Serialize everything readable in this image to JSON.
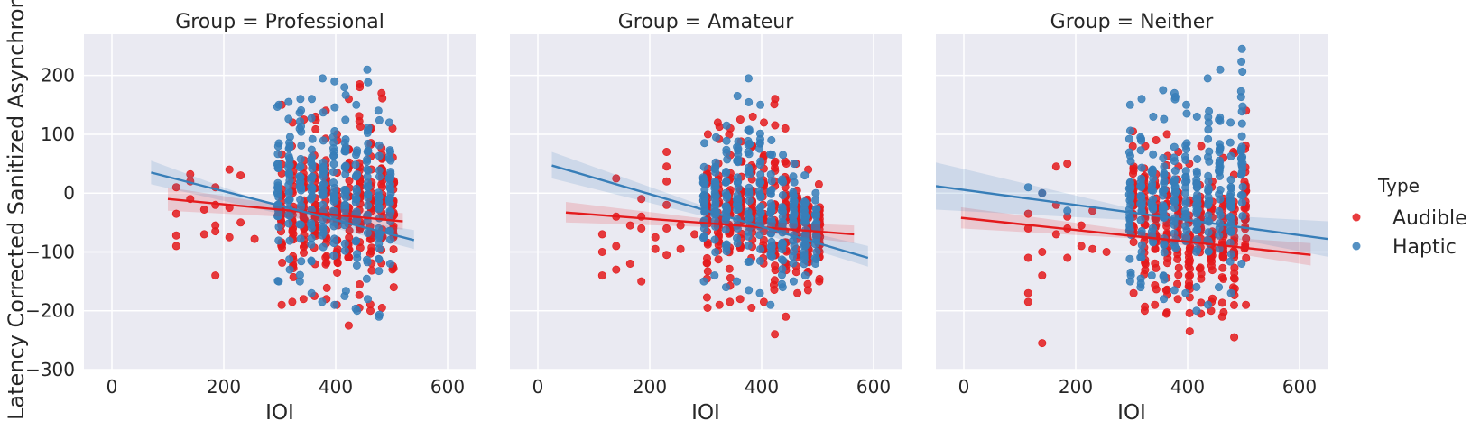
{
  "figure": {
    "ylabel": "Latency Corrected Sanitized Asynchrony",
    "xlabel": "IOI"
  },
  "legend": {
    "title": "Type",
    "items": [
      {
        "label": "Audible",
        "color": "#e41a1c"
      },
      {
        "label": "Haptic",
        "color": "#377eb8"
      }
    ]
  },
  "chart_data": [
    {
      "type": "scatter",
      "title": "Group = Professional",
      "xlabel": "IOI",
      "ylabel": "Latency Corrected Sanitized Asynchrony",
      "xlim": [
        -50,
        650
      ],
      "ylim": [
        -300,
        270
      ],
      "xticks": [
        0,
        200,
        400,
        600
      ],
      "yticks": [
        -300,
        -200,
        -100,
        0,
        100,
        200
      ],
      "grid": true,
      "ioi_values": [
        300,
        320,
        340,
        360,
        380,
        400,
        420,
        440,
        460,
        480,
        500
      ],
      "series": [
        {
          "name": "Audible",
          "color": "#e41a1c",
          "fit": {
            "x": [
              100,
              520
            ],
            "y": [
              -10,
              -48
            ]
          },
          "band": {
            "x": [
              100,
              300,
              520
            ],
            "lower": [
              -30,
              -40,
              -62
            ],
            "upper": [
              10,
              -20,
              -34
            ]
          },
          "sparse_points": [
            {
              "x": 115,
              "y": 10
            },
            {
              "x": 115,
              "y": -35
            },
            {
              "x": 115,
              "y": -72
            },
            {
              "x": 115,
              "y": -90
            },
            {
              "x": 140,
              "y": 32
            },
            {
              "x": 140,
              "y": 20
            },
            {
              "x": 140,
              "y": -10
            },
            {
              "x": 165,
              "y": -28
            },
            {
              "x": 165,
              "y": -70
            },
            {
              "x": 185,
              "y": 10
            },
            {
              "x": 185,
              "y": -20
            },
            {
              "x": 185,
              "y": -55
            },
            {
              "x": 185,
              "y": -65
            },
            {
              "x": 185,
              "y": -140
            },
            {
              "x": 210,
              "y": 40
            },
            {
              "x": 210,
              "y": -25
            },
            {
              "x": 210,
              "y": -75
            },
            {
              "x": 230,
              "y": 30
            },
            {
              "x": 230,
              "y": -50
            },
            {
              "x": 255,
              "y": -78
            }
          ],
          "ranges": {
            "x": [
              300,
              320,
              340,
              360,
              380,
              400,
              420,
              440,
              460,
              480,
              500
            ],
            "min": [
              -190,
              -185,
              -180,
              -175,
              -180,
              -190,
              -225,
              -195,
              -200,
              -195,
              -160
            ],
            "max": [
              150,
              120,
              125,
              130,
              140,
              100,
              160,
              185,
              110,
              170,
              110
            ]
          }
        },
        {
          "name": "Haptic",
          "color": "#377eb8",
          "fit": {
            "x": [
              70,
              540
            ],
            "y": [
              35,
              -80
            ]
          },
          "band": {
            "x": [
              70,
              300,
              540
            ],
            "lower": [
              15,
              -35,
              -95
            ],
            "upper": [
              55,
              -25,
              -63
            ]
          },
          "sparse_points": [],
          "ranges": {
            "x": [
              300,
              320,
              340,
              360,
              380,
              400,
              420,
              440,
              460,
              480,
              500
            ],
            "min": [
              -150,
              -130,
              -150,
              -170,
              -185,
              -190,
              -175,
              -200,
              -180,
              -210,
              -120
            ],
            "max": [
              150,
              155,
              160,
              160,
              195,
              190,
              180,
              150,
              210,
              140,
              120
            ]
          }
        }
      ]
    },
    {
      "type": "scatter",
      "title": "Group = Amateur",
      "xlabel": "IOI",
      "xlim": [
        -50,
        650
      ],
      "ylim": [
        -300,
        270
      ],
      "xticks": [
        0,
        200,
        400,
        600
      ],
      "yticks": [
        -300,
        -200,
        -100,
        0,
        100,
        200
      ],
      "grid": true,
      "ioi_values": [
        300,
        320,
        340,
        360,
        380,
        400,
        420,
        440,
        460,
        480,
        500
      ],
      "series": [
        {
          "name": "Audible",
          "color": "#e41a1c",
          "fit": {
            "x": [
              50,
              565
            ],
            "y": [
              -33,
              -70
            ]
          },
          "band": {
            "x": [
              50,
              320,
              565
            ],
            "lower": [
              -50,
              -58,
              -85
            ],
            "upper": [
              -15,
              -46,
              -55
            ]
          },
          "sparse_points": [
            {
              "x": 115,
              "y": -70
            },
            {
              "x": 115,
              "y": -100
            },
            {
              "x": 115,
              "y": -140
            },
            {
              "x": 140,
              "y": 25
            },
            {
              "x": 140,
              "y": -40
            },
            {
              "x": 140,
              "y": -90
            },
            {
              "x": 140,
              "y": -130
            },
            {
              "x": 165,
              "y": -55
            },
            {
              "x": 165,
              "y": -120
            },
            {
              "x": 185,
              "y": -10
            },
            {
              "x": 185,
              "y": -40
            },
            {
              "x": 185,
              "y": -60
            },
            {
              "x": 185,
              "y": -150
            },
            {
              "x": 210,
              "y": -75
            },
            {
              "x": 210,
              "y": -95
            },
            {
              "x": 230,
              "y": 70
            },
            {
              "x": 230,
              "y": 45
            },
            {
              "x": 230,
              "y": 20
            },
            {
              "x": 230,
              "y": -20
            },
            {
              "x": 230,
              "y": -60
            },
            {
              "x": 230,
              "y": -105
            },
            {
              "x": 255,
              "y": -55
            },
            {
              "x": 255,
              "y": -95
            },
            {
              "x": 280,
              "y": -70
            }
          ],
          "ranges": {
            "x": [
              300,
              320,
              340,
              360,
              380,
              400,
              420,
              440,
              460,
              480,
              500
            ],
            "min": [
              -195,
              -190,
              -185,
              -180,
              -195,
              -185,
              -240,
              -210,
              -170,
              -165,
              -150
            ],
            "max": [
              100,
              120,
              110,
              125,
              130,
              120,
              160,
              110,
              50,
              40,
              15
            ]
          }
        },
        {
          "name": "Haptic",
          "color": "#377eb8",
          "fit": {
            "x": [
              25,
              590
            ],
            "y": [
              47,
              -110
            ]
          },
          "band": {
            "x": [
              25,
              320,
              590
            ],
            "lower": [
              25,
              -45,
              -125
            ],
            "upper": [
              70,
              -30,
              -90
            ]
          },
          "sparse_points": [],
          "ranges": {
            "x": [
              300,
              320,
              340,
              360,
              380,
              400,
              420,
              440,
              460,
              480,
              500
            ],
            "min": [
              -150,
              -140,
              -160,
              -150,
              -165,
              -170,
              -190,
              -160,
              -150,
              -140,
              -120
            ],
            "max": [
              85,
              95,
              115,
              165,
              195,
              150,
              90,
              65,
              50,
              30,
              0
            ]
          }
        }
      ]
    },
    {
      "type": "scatter",
      "title": "Group = Neither",
      "xlabel": "IOI",
      "xlim": [
        -50,
        650
      ],
      "ylim": [
        -300,
        270
      ],
      "xticks": [
        0,
        200,
        400,
        600
      ],
      "yticks": [
        -300,
        -200,
        -100,
        0,
        100,
        200
      ],
      "grid": true,
      "ioi_values": [
        300,
        320,
        340,
        360,
        380,
        400,
        420,
        440,
        460,
        480,
        500
      ],
      "series": [
        {
          "name": "Audible",
          "color": "#e41a1c",
          "fit": {
            "x": [
              -5,
              620
            ],
            "y": [
              -42,
              -105
            ]
          },
          "band": {
            "x": [
              -5,
              320,
              620
            ],
            "lower": [
              -60,
              -78,
              -123
            ],
            "upper": [
              -24,
              -66,
              -85
            ]
          },
          "sparse_points": [
            {
              "x": 115,
              "y": -35
            },
            {
              "x": 115,
              "y": -60
            },
            {
              "x": 115,
              "y": -110
            },
            {
              "x": 115,
              "y": -170
            },
            {
              "x": 115,
              "y": -185
            },
            {
              "x": 140,
              "y": 0
            },
            {
              "x": 140,
              "y": -100
            },
            {
              "x": 140,
              "y": -140
            },
            {
              "x": 140,
              "y": -255
            },
            {
              "x": 165,
              "y": 45
            },
            {
              "x": 165,
              "y": -20
            },
            {
              "x": 165,
              "y": -70
            },
            {
              "x": 185,
              "y": 50
            },
            {
              "x": 185,
              "y": -40
            },
            {
              "x": 185,
              "y": -60
            },
            {
              "x": 185,
              "y": -110
            },
            {
              "x": 210,
              "y": -55
            },
            {
              "x": 210,
              "y": -90
            },
            {
              "x": 230,
              "y": -30
            },
            {
              "x": 230,
              "y": -95
            },
            {
              "x": 255,
              "y": -100
            }
          ],
          "ranges": {
            "x": [
              300,
              320,
              340,
              360,
              380,
              400,
              420,
              440,
              460,
              480,
              500
            ],
            "min": [
              -170,
              -200,
              -190,
              -205,
              -180,
              -235,
              -205,
              -200,
              -210,
              -245,
              -190
            ],
            "max": [
              105,
              80,
              90,
              100,
              70,
              50,
              80,
              20,
              60,
              70,
              140
            ]
          }
        },
        {
          "name": "Haptic",
          "color": "#377eb8",
          "fit": {
            "x": [
              -50,
              650
            ],
            "y": [
              12,
              -78
            ]
          },
          "band": {
            "x": [
              -50,
              320,
              650
            ],
            "lower": [
              -28,
              -47,
              -108
            ],
            "upper": [
              52,
              -31,
              -48
            ]
          },
          "sparse_points": [
            {
              "x": 115,
              "y": 10
            },
            {
              "x": 140,
              "y": 0
            },
            {
              "x": 185,
              "y": -30
            }
          ],
          "ranges": {
            "x": [
              300,
              320,
              340,
              360,
              380,
              400,
              420,
              440,
              460,
              480,
              500
            ],
            "min": [
              -150,
              -160,
              -140,
              -180,
              -165,
              -170,
              -200,
              -190,
              -160,
              -170,
              -120
            ],
            "max": [
              150,
              160,
              130,
              175,
              170,
              150,
              130,
              195,
              210,
              120,
              245
            ]
          }
        }
      ]
    }
  ]
}
